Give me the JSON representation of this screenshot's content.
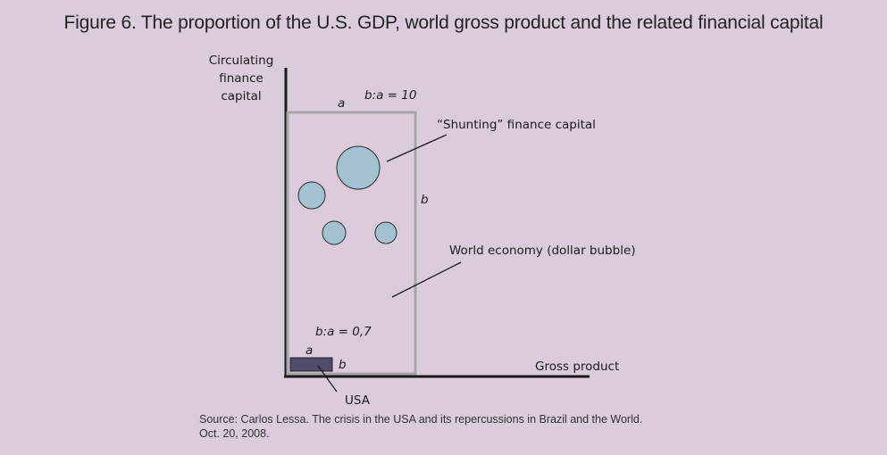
{
  "title": "Figure 6. The proportion of the U.S. GDP, world gross product and the related financial capital",
  "y_axis_label": [
    "Circulating",
    "finance",
    "capital"
  ],
  "x_axis_label": "Gross product",
  "world_box": {
    "label_a": "a",
    "label_b": "b",
    "ratio": "b:a = 10",
    "name": "World economy (dollar bubble)"
  },
  "shunting_label": "“Shunting” finance capital",
  "usa_box": {
    "label_a": "a",
    "label_b": "b",
    "ratio": "b:a = 0,7",
    "name": "USA"
  },
  "source": {
    "line1": "Source: Carlos Lessa. The crisis in the USA and its repercussions in Brazil and the World.",
    "line2": "Oct. 20, 2008."
  },
  "colors": {
    "background": "#dccbdc",
    "axis": "#1a1a1a",
    "world_box_border": "#a6a6a6",
    "bubble_fill": "#a3c3d0",
    "bubble_stroke": "#2a2a2a",
    "usa_fill": "#4e4b6b"
  }
}
